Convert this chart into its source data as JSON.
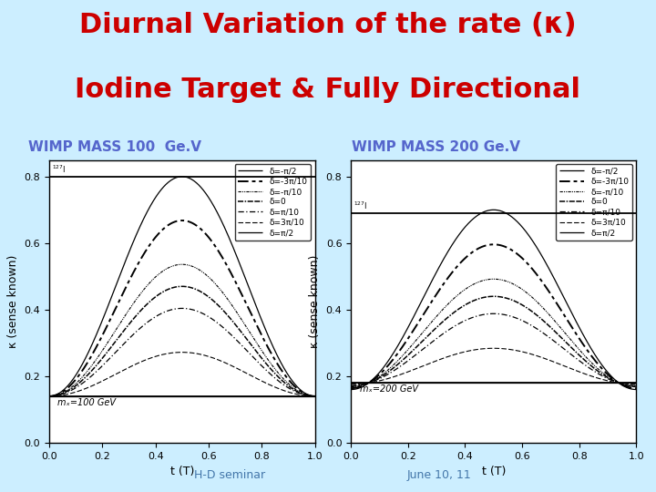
{
  "bg_color": "#cceeff",
  "title_line1": "Diurnal Variation of the rate (κ)",
  "title_line2": "Iodine Target & Fully Directional",
  "title_color": "#cc0000",
  "title_fontsize": 22,
  "subtitle1": "WIMP MASS 100  Ge.V",
  "subtitle2": "WIMP MASS 200 Ge.V",
  "subtitle_color": "#5566cc",
  "subtitle_fontsize": 11,
  "xlabel": "t (T)",
  "ylabel": "κ (sense known)",
  "bottom_left": "H-D seminar",
  "bottom_right": "June 10, 11",
  "bottom_color": "#4477aa",
  "plot1_annotation": "mₓ=100 GeV",
  "plot2_annotation": "mₓ=200 GeV",
  "plot1_hline1": 0.8,
  "plot1_hline2": 0.14,
  "plot2_hline1": 0.69,
  "plot2_hline2": 0.18,
  "delta_labels": [
    "δ=-π/2",
    "δ=-3π/10",
    "δ=-π/10",
    "δ=0",
    "δ=π/10",
    "δ=3π/10",
    "δ=π/2"
  ],
  "ylim": [
    0.0,
    0.85
  ],
  "xlim": [
    0.0,
    1.0
  ]
}
